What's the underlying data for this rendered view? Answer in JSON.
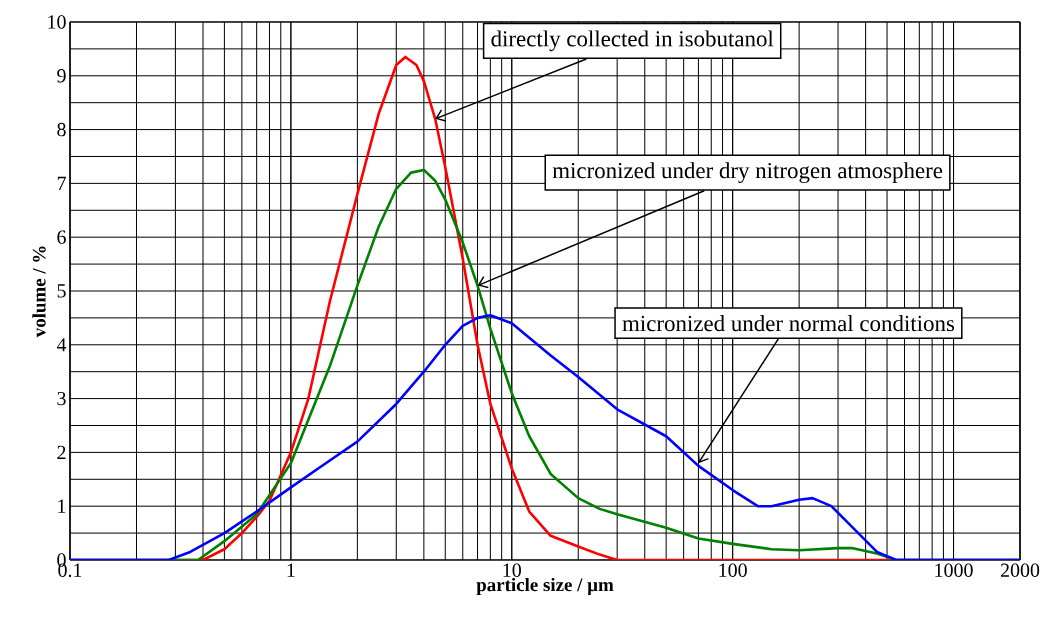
{
  "chart_data": {
    "type": "line",
    "xlabel": "particle size / µm",
    "ylabel": "volume / %",
    "log": "x",
    "xlim": [
      0.1,
      2000
    ],
    "ylim": [
      0,
      10
    ],
    "xticks": [
      0.1,
      1,
      10,
      100,
      1000,
      2000
    ],
    "yticks": [
      0,
      1,
      2,
      3,
      4,
      5,
      6,
      7,
      8,
      9,
      10
    ],
    "grid": true,
    "marker": "none",
    "line_style": "solid",
    "series": [
      {
        "color": "#ff0000",
        "x": [
          0.1,
          0.4,
          0.5,
          0.6,
          0.7,
          0.8,
          1,
          1.2,
          1.5,
          2,
          2.5,
          3,
          3.3,
          3.7,
          4,
          4.5,
          5,
          6,
          7,
          8,
          10,
          12,
          15,
          20,
          25,
          30,
          2000
        ],
        "values": [
          0,
          0,
          0.2,
          0.5,
          0.8,
          1.1,
          2.0,
          3.0,
          4.8,
          6.8,
          8.3,
          9.2,
          9.35,
          9.2,
          8.9,
          8.2,
          7.3,
          5.6,
          4.0,
          2.9,
          1.7,
          0.9,
          0.45,
          0.25,
          0.1,
          0,
          0
        ]
      },
      {
        "color": "#008000",
        "x": [
          0.1,
          0.38,
          0.5,
          0.7,
          1,
          1.5,
          2,
          2.5,
          3,
          3.5,
          4,
          4.5,
          5,
          6,
          7,
          8,
          10,
          12,
          15,
          20,
          25,
          30,
          50,
          70,
          100,
          150,
          200,
          300,
          350,
          450,
          550,
          2000
        ],
        "values": [
          0,
          0,
          0.35,
          0.85,
          1.8,
          3.6,
          5.1,
          6.2,
          6.9,
          7.2,
          7.25,
          7.05,
          6.7,
          5.9,
          5.1,
          4.3,
          3.1,
          2.3,
          1.6,
          1.15,
          0.95,
          0.85,
          0.6,
          0.4,
          0.3,
          0.2,
          0.18,
          0.22,
          0.22,
          0.12,
          0,
          0
        ]
      },
      {
        "color": "#0000ff",
        "x": [
          0.1,
          0.28,
          0.35,
          0.5,
          0.7,
          1,
          1.5,
          2,
          3,
          4,
          5,
          6,
          7,
          8,
          10,
          15,
          20,
          30,
          50,
          70,
          100,
          130,
          150,
          200,
          230,
          280,
          350,
          450,
          550,
          2000
        ],
        "values": [
          0,
          0,
          0.15,
          0.5,
          0.9,
          1.35,
          1.85,
          2.2,
          2.9,
          3.5,
          4.0,
          4.35,
          4.5,
          4.55,
          4.4,
          3.8,
          3.4,
          2.8,
          2.3,
          1.75,
          1.3,
          1.0,
          1.0,
          1.12,
          1.15,
          1.0,
          0.6,
          0.15,
          0,
          0
        ]
      }
    ],
    "annotations": [
      {
        "text": "directly collected in isobutanol",
        "x": 4.5,
        "y": 8.2
      },
      {
        "text": "micronized under dry nitrogen atmosphere",
        "x": 7,
        "y": 5.1
      },
      {
        "text": "micronized under normal conditions",
        "x": 70,
        "y": 1.8
      }
    ]
  }
}
